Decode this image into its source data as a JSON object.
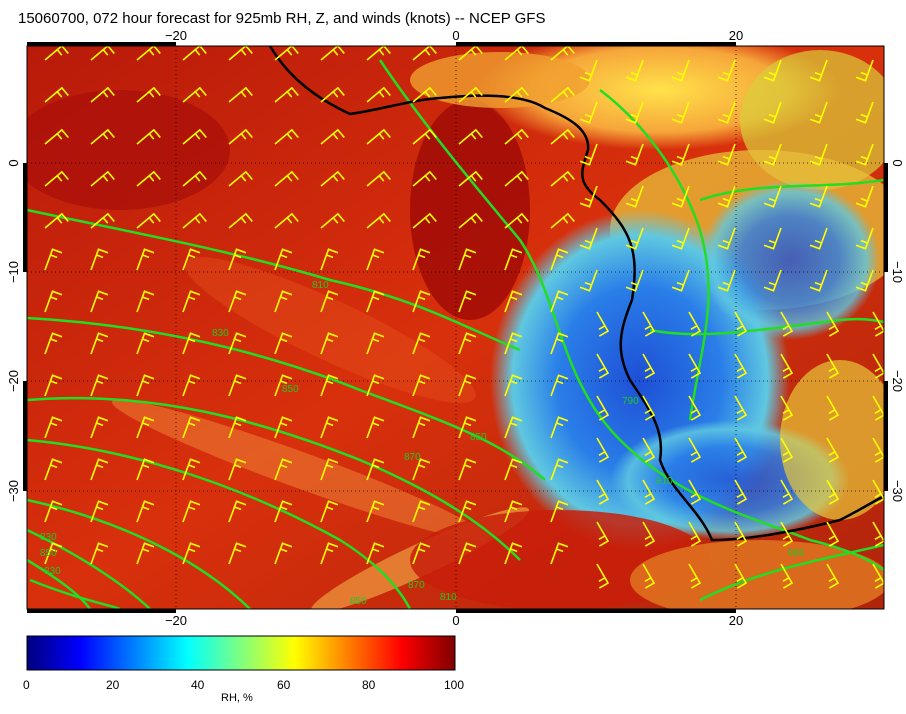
{
  "title": "15060700, 072 hour forecast for 925mb RH, Z, and winds (knots) -- NCEP GFS",
  "map": {
    "lon_ticks": [
      "−20",
      "0",
      "20"
    ],
    "lat_ticks": [
      "0",
      "−10",
      "−20",
      "−30"
    ],
    "contour_labels": [
      "810",
      "830",
      "850",
      "850",
      "870",
      "790",
      "810",
      "830",
      "850",
      "830",
      "850",
      "870",
      "890",
      "810"
    ],
    "colors": {
      "contour": "#22dd22",
      "coast": "#000000",
      "barb": "#ffff00",
      "land_dry": "#c81e0a",
      "ocean_moist": "#1e5adc"
    }
  },
  "colorbar": {
    "ticks": [
      "0",
      "20",
      "40",
      "60",
      "80",
      "100"
    ],
    "label": "RH, %",
    "colors": [
      "#00007f",
      "#0000ff",
      "#007fff",
      "#00ffff",
      "#7fff7f",
      "#ffff00",
      "#ff7f00",
      "#ff0000",
      "#7f0000"
    ]
  }
}
